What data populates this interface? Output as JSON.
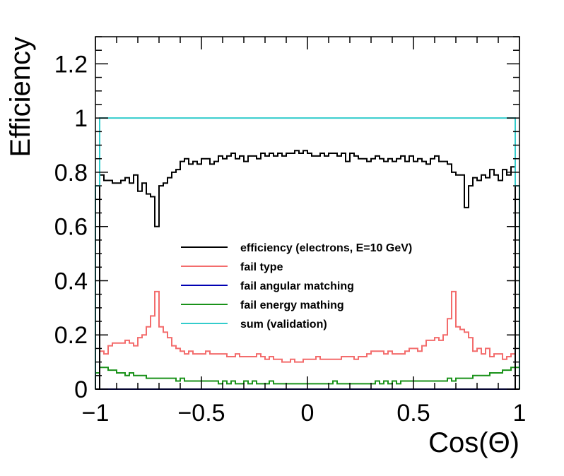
{
  "chart_data": {
    "type": "line",
    "title": "",
    "xlabel": "Cos(Θ)",
    "ylabel": "Efficiency",
    "xlim": [
      -1,
      1
    ],
    "ylim": [
      0,
      1.3
    ],
    "x_ticks": [
      -1,
      -0.5,
      0,
      0.5,
      1
    ],
    "x_tick_labels": [
      "−1",
      "−0.5",
      "0",
      "0.5",
      "1"
    ],
    "y_ticks": [
      0,
      0.2,
      0.4,
      0.6,
      0.8,
      1,
      1.2
    ],
    "y_tick_labels": [
      "0",
      "0.2",
      "0.4",
      "0.6",
      "0.8",
      "1",
      "1.2"
    ],
    "grid": false,
    "legend_position": "center",
    "bins": {
      "x_min": -1,
      "x_max": 1,
      "count": 100
    },
    "series": [
      {
        "name": "efficiency (electrons, E=10 GeV)",
        "color": "#000000",
        "values": [
          0.0,
          0.79,
          0.77,
          0.77,
          0.76,
          0.76,
          0.77,
          0.78,
          0.76,
          0.79,
          0.73,
          0.76,
          0.72,
          0.71,
          0.6,
          0.75,
          0.76,
          0.78,
          0.8,
          0.81,
          0.84,
          0.85,
          0.83,
          0.84,
          0.83,
          0.85,
          0.85,
          0.83,
          0.84,
          0.86,
          0.85,
          0.86,
          0.87,
          0.85,
          0.86,
          0.84,
          0.86,
          0.86,
          0.85,
          0.87,
          0.86,
          0.87,
          0.86,
          0.87,
          0.86,
          0.87,
          0.87,
          0.88,
          0.87,
          0.88,
          0.87,
          0.86,
          0.86,
          0.87,
          0.86,
          0.87,
          0.87,
          0.86,
          0.87,
          0.84,
          0.87,
          0.86,
          0.85,
          0.85,
          0.84,
          0.85,
          0.86,
          0.85,
          0.84,
          0.85,
          0.84,
          0.85,
          0.86,
          0.84,
          0.86,
          0.84,
          0.85,
          0.84,
          0.83,
          0.85,
          0.86,
          0.84,
          0.84,
          0.83,
          0.8,
          0.79,
          0.79,
          0.67,
          0.75,
          0.78,
          0.77,
          0.79,
          0.78,
          0.81,
          0.79,
          0.77,
          0.81,
          0.79,
          0.82,
          0.0
        ]
      },
      {
        "name": "fail type",
        "color": "#f36c6c",
        "values": [
          0.0,
          0.14,
          0.13,
          0.16,
          0.17,
          0.17,
          0.17,
          0.18,
          0.17,
          0.16,
          0.19,
          0.2,
          0.23,
          0.27,
          0.36,
          0.23,
          0.21,
          0.19,
          0.16,
          0.15,
          0.14,
          0.13,
          0.14,
          0.13,
          0.13,
          0.13,
          0.14,
          0.13,
          0.13,
          0.13,
          0.13,
          0.12,
          0.12,
          0.13,
          0.12,
          0.12,
          0.12,
          0.12,
          0.13,
          0.12,
          0.11,
          0.12,
          0.11,
          0.11,
          0.1,
          0.1,
          0.11,
          0.1,
          0.1,
          0.11,
          0.11,
          0.11,
          0.12,
          0.11,
          0.11,
          0.11,
          0.11,
          0.11,
          0.12,
          0.12,
          0.12,
          0.11,
          0.12,
          0.12,
          0.13,
          0.14,
          0.14,
          0.14,
          0.13,
          0.14,
          0.13,
          0.13,
          0.13,
          0.14,
          0.15,
          0.15,
          0.14,
          0.16,
          0.18,
          0.18,
          0.19,
          0.18,
          0.2,
          0.26,
          0.36,
          0.23,
          0.22,
          0.21,
          0.19,
          0.14,
          0.15,
          0.13,
          0.15,
          0.12,
          0.13,
          0.13,
          0.11,
          0.12,
          0.13,
          0.0
        ]
      },
      {
        "name": "fail angular matching",
        "color": "#0000b3",
        "values": [
          0.0,
          0.0,
          0.0,
          0.0,
          0.0,
          0.0,
          0.0,
          0.0,
          0.0,
          0.0,
          0.0,
          0.0,
          0.0,
          0.0,
          0.0,
          0.0,
          0.0,
          0.0,
          0.0,
          0.0,
          0.0,
          0.0,
          0.0,
          0.0,
          0.0,
          0.0,
          0.0,
          0.0,
          0.0,
          0.0,
          0.0,
          0.0,
          0.0,
          0.0,
          0.0,
          0.0,
          0.0,
          0.0,
          0.0,
          0.0,
          0.0,
          0.0,
          0.0,
          0.0,
          0.0,
          0.0,
          0.0,
          0.0,
          0.0,
          0.0,
          0.0,
          0.0,
          0.0,
          0.0,
          0.0,
          0.0,
          0.0,
          0.0,
          0.0,
          0.0,
          0.0,
          0.0,
          0.0,
          0.0,
          0.0,
          0.0,
          0.0,
          0.0,
          0.0,
          0.0,
          0.0,
          0.0,
          0.0,
          0.0,
          0.0,
          0.0,
          0.0,
          0.0,
          0.0,
          0.0,
          0.0,
          0.0,
          0.0,
          0.0,
          0.0,
          0.0,
          0.0,
          0.0,
          0.0,
          0.0,
          0.0,
          0.0,
          0.0,
          0.0,
          0.0,
          0.0,
          0.0,
          0.0,
          0.0,
          0.0
        ]
      },
      {
        "name": "fail energy mathing",
        "color": "#1a921a",
        "values": [
          0.06,
          0.08,
          0.08,
          0.07,
          0.07,
          0.06,
          0.06,
          0.05,
          0.06,
          0.05,
          0.05,
          0.05,
          0.04,
          0.04,
          0.04,
          0.04,
          0.04,
          0.04,
          0.04,
          0.03,
          0.04,
          0.03,
          0.03,
          0.03,
          0.03,
          0.03,
          0.03,
          0.03,
          0.03,
          0.02,
          0.03,
          0.02,
          0.03,
          0.02,
          0.02,
          0.03,
          0.02,
          0.03,
          0.02,
          0.02,
          0.02,
          0.03,
          0.02,
          0.02,
          0.02,
          0.02,
          0.02,
          0.02,
          0.02,
          0.02,
          0.02,
          0.02,
          0.02,
          0.02,
          0.02,
          0.02,
          0.03,
          0.02,
          0.02,
          0.02,
          0.02,
          0.02,
          0.02,
          0.02,
          0.02,
          0.02,
          0.03,
          0.02,
          0.03,
          0.02,
          0.03,
          0.02,
          0.03,
          0.03,
          0.03,
          0.03,
          0.03,
          0.03,
          0.03,
          0.03,
          0.03,
          0.03,
          0.03,
          0.04,
          0.03,
          0.04,
          0.04,
          0.04,
          0.04,
          0.05,
          0.05,
          0.05,
          0.05,
          0.06,
          0.06,
          0.06,
          0.07,
          0.07,
          0.08,
          0.08
        ]
      },
      {
        "name": "sum (validation)",
        "color": "#33cccc",
        "values": [
          0.75,
          1.0,
          1.0,
          1.0,
          1.0,
          1.0,
          1.0,
          1.0,
          1.0,
          1.0,
          1.0,
          1.0,
          1.0,
          1.0,
          1.0,
          1.0,
          1.0,
          1.0,
          1.0,
          1.0,
          1.0,
          1.0,
          1.0,
          1.0,
          1.0,
          1.0,
          1.0,
          1.0,
          1.0,
          1.0,
          1.0,
          1.0,
          1.0,
          1.0,
          1.0,
          1.0,
          1.0,
          1.0,
          1.0,
          1.0,
          1.0,
          1.0,
          1.0,
          1.0,
          1.0,
          1.0,
          1.0,
          1.0,
          1.0,
          1.0,
          1.0,
          1.0,
          1.0,
          1.0,
          1.0,
          1.0,
          1.0,
          1.0,
          1.0,
          1.0,
          1.0,
          1.0,
          1.0,
          1.0,
          1.0,
          1.0,
          1.0,
          1.0,
          1.0,
          1.0,
          1.0,
          1.0,
          1.0,
          1.0,
          1.0,
          1.0,
          1.0,
          1.0,
          1.0,
          1.0,
          1.0,
          1.0,
          1.0,
          1.0,
          1.0,
          1.0,
          1.0,
          1.0,
          1.0,
          1.0,
          1.0,
          1.0,
          1.0,
          1.0,
          1.0,
          1.0,
          1.0,
          1.0,
          1.0,
          0.75
        ]
      }
    ]
  }
}
